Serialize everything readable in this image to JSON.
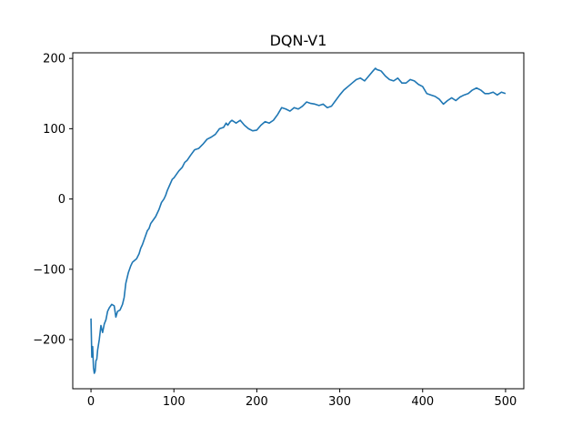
{
  "chart_data": {
    "type": "line",
    "title": "DQN-V1",
    "xlabel": "",
    "ylabel": "",
    "xlim": [
      -22,
      522
    ],
    "ylim": [
      -270,
      208
    ],
    "x_ticks": [
      0,
      100,
      200,
      300,
      400,
      500
    ],
    "y_ticks": [
      -200,
      -100,
      0,
      100,
      200
    ],
    "x_tick_labels": [
      "0",
      "100",
      "200",
      "300",
      "400",
      "500"
    ],
    "y_tick_labels": [
      "−200",
      "−100",
      "0",
      "100",
      "200"
    ],
    "grid": false,
    "series": [
      {
        "color": "#1f77b4",
        "x": [
          0,
          1,
          2,
          3,
          4,
          5,
          6,
          7,
          8,
          10,
          12,
          14,
          16,
          18,
          20,
          22,
          25,
          28,
          30,
          32,
          35,
          38,
          40,
          42,
          45,
          48,
          50,
          52,
          55,
          58,
          60,
          62,
          65,
          68,
          70,
          72,
          75,
          78,
          80,
          82,
          85,
          88,
          90,
          92,
          95,
          98,
          100,
          103,
          106,
          110,
          113,
          116,
          120,
          125,
          130,
          135,
          140,
          145,
          150,
          155,
          160,
          163,
          165,
          168,
          170,
          175,
          180,
          185,
          190,
          195,
          200,
          205,
          210,
          215,
          220,
          225,
          230,
          235,
          240,
          245,
          250,
          255,
          260,
          265,
          270,
          275,
          280,
          285,
          290,
          295,
          300,
          305,
          310,
          315,
          320,
          325,
          330,
          335,
          340,
          343,
          345,
          348,
          350,
          355,
          360,
          365,
          370,
          375,
          380,
          385,
          390,
          395,
          400,
          405,
          410,
          415,
          420,
          425,
          430,
          435,
          440,
          445,
          450,
          455,
          460,
          465,
          470,
          475,
          480,
          485,
          490,
          495,
          500
        ],
        "y": [
          -170,
          -225,
          -210,
          -240,
          -248,
          -245,
          -230,
          -228,
          -215,
          -200,
          -180,
          -190,
          -178,
          -172,
          -160,
          -155,
          -150,
          -152,
          -168,
          -160,
          -158,
          -150,
          -140,
          -120,
          -105,
          -95,
          -90,
          -88,
          -85,
          -78,
          -70,
          -65,
          -55,
          -45,
          -42,
          -35,
          -30,
          -25,
          -20,
          -15,
          -5,
          0,
          5,
          12,
          20,
          28,
          30,
          35,
          40,
          45,
          52,
          55,
          62,
          70,
          72,
          78,
          85,
          88,
          92,
          100,
          102,
          108,
          105,
          110,
          112,
          108,
          112,
          105,
          100,
          97,
          98,
          105,
          110,
          108,
          112,
          120,
          130,
          128,
          125,
          130,
          128,
          132,
          138,
          136,
          135,
          133,
          135,
          130,
          132,
          140,
          148,
          155,
          160,
          165,
          170,
          172,
          168,
          175,
          182,
          186,
          184,
          183,
          182,
          175,
          170,
          168,
          172,
          165,
          165,
          170,
          168,
          163,
          160,
          150,
          148,
          146,
          142,
          135,
          140,
          144,
          140,
          145,
          148,
          150,
          155,
          158,
          155,
          150,
          150,
          152,
          148,
          152,
          150
        ]
      }
    ]
  }
}
